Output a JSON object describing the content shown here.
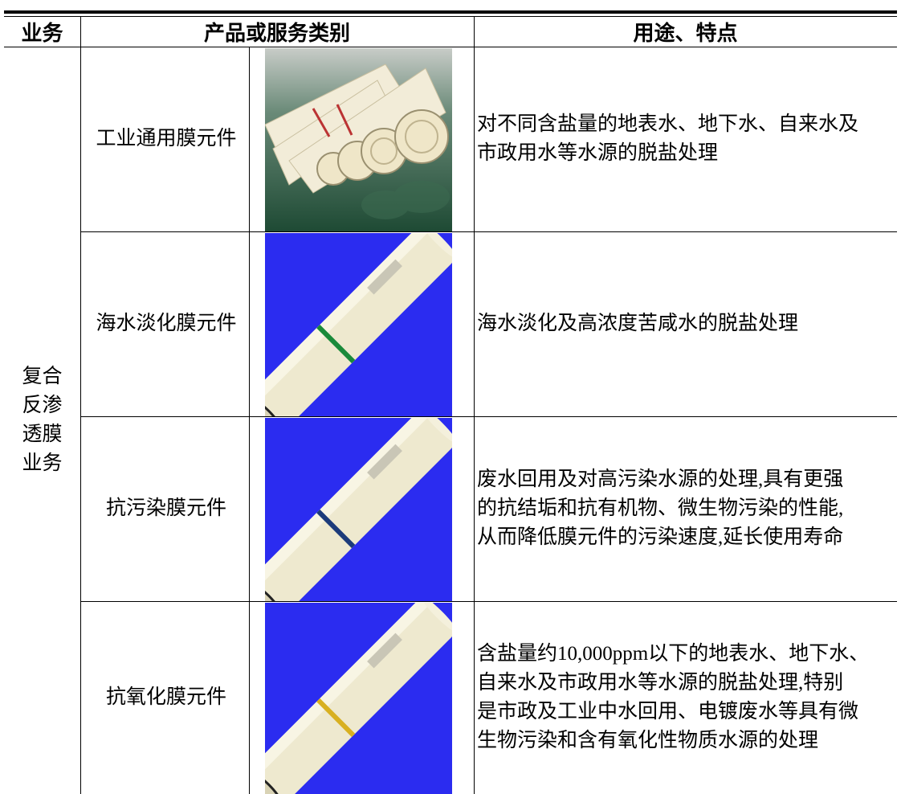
{
  "table": {
    "header": [
      "业务",
      "产品或服务类别",
      "用途、特点"
    ],
    "business": [
      "复合",
      "反渗",
      "透膜",
      "业务"
    ],
    "rows": [
      {
        "product": "工业通用膜元件",
        "description": [
          "对不同含盐量的地表水、地下水、自来水及",
          "市政用水等水源的脱盐处理"
        ]
      },
      {
        "product": "海水淡化膜元件",
        "description": [
          "海水淡化及高浓度苦咸水的脱盐处理"
        ]
      },
      {
        "product": "抗污染膜元件",
        "description": [
          "废水回用及对高污染水源的处理,具有更强",
          "的抗结垢和抗有机物、微生物污染的性能,",
          "从而降低膜元件的污染速度,延长使用寿命"
        ]
      },
      {
        "product": "抗氧化膜元件",
        "description": [
          "含盐量约10,000ppm以下的地表水、地下水、",
          "自来水及市政用水等水源的脱盐处理,特别",
          "是市政及工业中水回用、电镀废水等具有微",
          "生物污染和含有氧化性物质水源的处理"
        ]
      }
    ]
  }
}
